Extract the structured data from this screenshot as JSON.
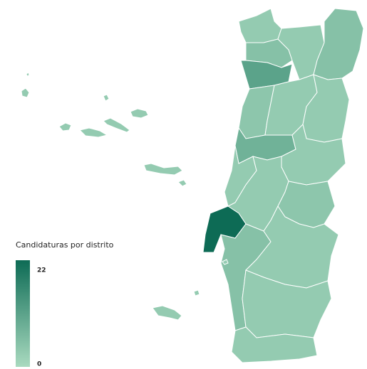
{
  "map": {
    "legend": {
      "title": "Candidaturas por distrito",
      "min": 0,
      "max": 22,
      "colors": [
        "#a9dabf",
        "#0d6b55"
      ]
    },
    "regions": [
      3,
      5,
      3,
      5,
      11,
      4,
      3,
      3,
      8,
      3,
      3,
      3,
      4,
      22,
      5,
      3,
      3,
      3,
      3,
      3,
      3,
      3,
      3,
      3,
      3,
      3,
      3,
      3,
      3,
      3
    ]
  }
}
